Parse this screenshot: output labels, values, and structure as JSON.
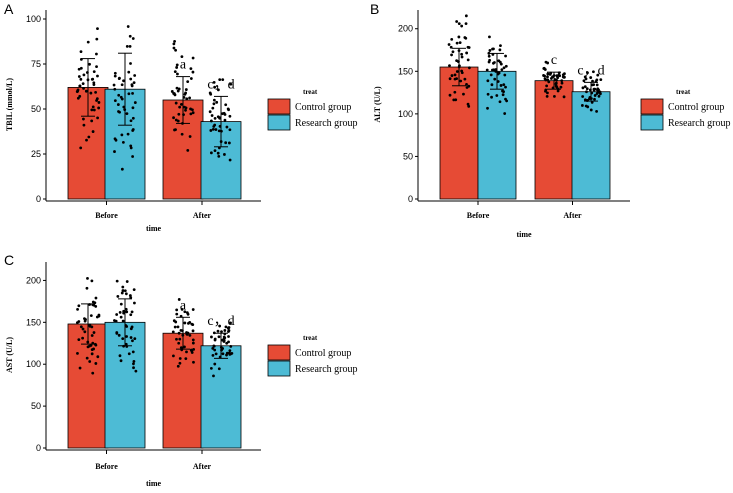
{
  "colors": {
    "control": "#e64b35",
    "research": "#4dbbd5",
    "axis": "#000000"
  },
  "legend_title": "treat",
  "chart_data": [
    {
      "panel": "A",
      "type": "bar",
      "categories": [
        "Before",
        "After"
      ],
      "series": [
        {
          "name": "Control group",
          "values": [
            62,
            55
          ],
          "sd": [
            16,
            13
          ]
        },
        {
          "name": "Research group",
          "values": [
            61,
            43
          ],
          "sd": [
            20,
            14
          ]
        }
      ],
      "annotations": [
        [
          "",
          ""
        ],
        [
          "a",
          "c，d"
        ]
      ],
      "ylabel": "TBIL (mmol/L)",
      "xlabel": "time",
      "ylim": [
        0,
        105
      ],
      "yticks": [
        0,
        25,
        50,
        75,
        100
      ]
    },
    {
      "panel": "B",
      "type": "bar",
      "categories": [
        "Before",
        "After"
      ],
      "series": [
        {
          "name": "Control group",
          "values": [
            155,
            139
          ],
          "sd": [
            22,
            10
          ]
        },
        {
          "name": "Research group",
          "values": [
            150,
            126
          ],
          "sd": [
            21,
            11
          ]
        }
      ],
      "annotations": [
        [
          "",
          ""
        ],
        [
          "c",
          "c，d"
        ]
      ],
      "ylabel": "ALT (U/L)",
      "xlabel": "time",
      "ylim": [
        0,
        222
      ],
      "yticks": [
        0,
        50,
        100,
        150,
        200
      ]
    },
    {
      "panel": "C",
      "type": "bar",
      "categories": [
        "Before",
        "After"
      ],
      "series": [
        {
          "name": "Control group",
          "values": [
            148,
            137
          ],
          "sd": [
            24,
            19
          ]
        },
        {
          "name": "Research group",
          "values": [
            150,
            122
          ],
          "sd": [
            28,
            15
          ]
        }
      ],
      "annotations": [
        [
          "",
          ""
        ],
        [
          "a",
          "c，d"
        ]
      ],
      "ylabel": "AST (U/L)",
      "xlabel": "time",
      "ylim": [
        0,
        222
      ],
      "yticks": [
        0,
        50,
        100,
        150,
        200
      ]
    }
  ]
}
